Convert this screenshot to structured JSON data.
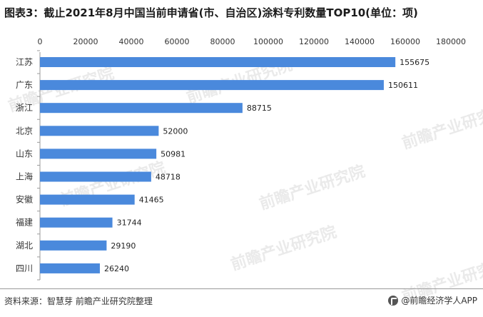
{
  "title": "图表3：截止2021年8月中国当前申请省(市、自治区)涂料专利数量TOP10(单位：项)",
  "footer": {
    "source": "资料来源：智慧芽 前瞻产业研究院整理",
    "brand": "@前瞻经济学人APP"
  },
  "watermark": "前瞻产业研究院",
  "colors": {
    "bar": "#4a89dc",
    "grid": "#d9d9d9"
  },
  "chart_data": {
    "type": "bar",
    "orientation": "horizontal",
    "categories": [
      "江苏",
      "广东",
      "浙江",
      "北京",
      "山东",
      "上海",
      "安徽",
      "福建",
      "湖北",
      "四川"
    ],
    "values": [
      155675,
      150611,
      88715,
      52000,
      50981,
      48718,
      41465,
      31744,
      29190,
      26240
    ],
    "xlim": [
      0,
      180000
    ],
    "x_ticks": [
      0,
      20000,
      40000,
      60000,
      80000,
      100000,
      120000,
      140000,
      160000,
      180000
    ],
    "x_tick_labels": [
      "0",
      "20000",
      "40000",
      "60000",
      "80000",
      "100000",
      "120000",
      "140000",
      "160000",
      "180000"
    ],
    "axis_position": "top",
    "data_labels": true,
    "grid": false
  }
}
